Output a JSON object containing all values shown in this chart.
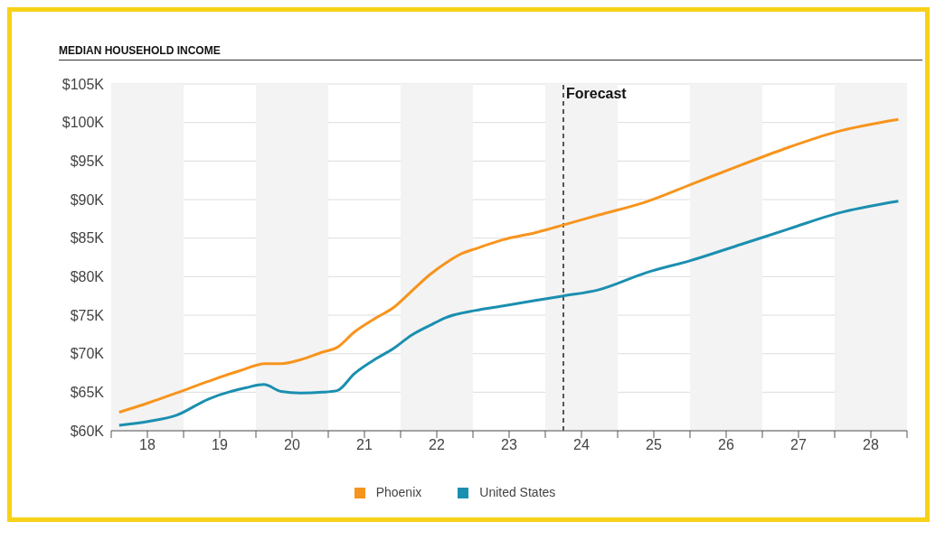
{
  "chart_data": {
    "type": "line",
    "title": "MEDIAN HOUSEHOLD INCOME",
    "series": [
      {
        "name": "Phoenix",
        "color": "#f7941d",
        "x": [
          18.11,
          18.51,
          18.9,
          19.34,
          19.78,
          20.13,
          20.35,
          20.61,
          20.92,
          21.12,
          21.36,
          21.67,
          21.89,
          22.15,
          22.41,
          22.63,
          22.85,
          23.03,
          23.42,
          23.86,
          24.25,
          24.74,
          25.39,
          26.05,
          26.71,
          27.37,
          28.03,
          28.88
        ],
        "values": [
          62.4,
          63.6,
          64.9,
          66.4,
          67.8,
          68.7,
          68.7,
          69.2,
          70.2,
          70.8,
          72.8,
          74.7,
          75.9,
          78.1,
          80.3,
          81.8,
          83,
          83.6,
          84.8,
          85.7,
          86.7,
          88,
          89.7,
          92.1,
          94.5,
          96.8,
          98.8,
          100.4
        ]
      },
      {
        "name": "United States",
        "color": "#1b8fb0",
        "x": [
          18.11,
          18.51,
          18.9,
          19.34,
          19.87,
          20.11,
          20.35,
          20.61,
          20.92,
          21.12,
          21.36,
          21.67,
          21.89,
          22.15,
          22.41,
          22.63,
          23.03,
          23.42,
          23.86,
          24.25,
          24.74,
          25.39,
          26.05,
          26.71,
          27.37,
          28.03,
          28.88
        ],
        "values": [
          60.7,
          61.2,
          62,
          64.1,
          65.6,
          66,
          65.1,
          64.9,
          65,
          65.2,
          67.4,
          69.4,
          70.6,
          72.4,
          73.7,
          74.7,
          75.6,
          76.2,
          76.9,
          77.5,
          78.3,
          80.5,
          82.2,
          84.2,
          86.2,
          88.2,
          89.8
        ]
      }
    ],
    "xlim": [
      18,
      29
    ],
    "xticks": [
      {
        "value": 18,
        "label": null
      },
      {
        "value": 18.5,
        "label": "18"
      },
      {
        "value": 19,
        "label": null
      },
      {
        "value": 19.5,
        "label": "19"
      },
      {
        "value": 20,
        "label": null
      },
      {
        "value": 20.5,
        "label": "20"
      },
      {
        "value": 21,
        "label": null
      },
      {
        "value": 21.5,
        "label": "21"
      },
      {
        "value": 22,
        "label": null
      },
      {
        "value": 22.5,
        "label": "22"
      },
      {
        "value": 23,
        "label": null
      },
      {
        "value": 23.5,
        "label": "23"
      },
      {
        "value": 24,
        "label": null
      },
      {
        "value": 24.5,
        "label": "24"
      },
      {
        "value": 25,
        "label": null
      },
      {
        "value": 25.5,
        "label": "25"
      },
      {
        "value": 26,
        "label": null
      },
      {
        "value": 26.5,
        "label": "26"
      },
      {
        "value": 27,
        "label": null
      },
      {
        "value": 27.5,
        "label": "27"
      },
      {
        "value": 28,
        "label": null
      },
      {
        "value": 28.5,
        "label": "28"
      },
      {
        "value": 29,
        "label": null
      }
    ],
    "ylim": [
      60,
      105
    ],
    "yticks": [
      {
        "value": 60,
        "label": "$60K"
      },
      {
        "value": 65,
        "label": "$65K"
      },
      {
        "value": 70,
        "label": "$70K"
      },
      {
        "value": 75,
        "label": "$75K"
      },
      {
        "value": 80,
        "label": "$80K"
      },
      {
        "value": 85,
        "label": "$85K"
      },
      {
        "value": 90,
        "label": "$90K"
      },
      {
        "value": 95,
        "label": "$95K"
      },
      {
        "value": 100,
        "label": "$100K"
      },
      {
        "value": 105,
        "label": "$105K"
      }
    ],
    "ref_lines": [
      {
        "axis": "x",
        "value": 24.25,
        "label": "Forecast",
        "color": "#555555",
        "line_style": "dashed"
      }
    ],
    "bands": [
      {
        "axis": "x",
        "from": 18,
        "to": 19,
        "color": "#f3f3f3"
      },
      {
        "axis": "x",
        "from": 20,
        "to": 21,
        "color": "#f3f3f3"
      },
      {
        "axis": "x",
        "from": 22,
        "to": 23,
        "color": "#f3f3f3"
      },
      {
        "axis": "x",
        "from": 24,
        "to": 25,
        "color": "#f3f3f3"
      },
      {
        "axis": "x",
        "from": 26,
        "to": 27,
        "color": "#f3f3f3"
      },
      {
        "axis": "x",
        "from": 28,
        "to": 29,
        "color": "#f3f3f3"
      }
    ],
    "grid": "y",
    "legend": "bottom",
    "marker": "none",
    "line_style": "solid"
  }
}
